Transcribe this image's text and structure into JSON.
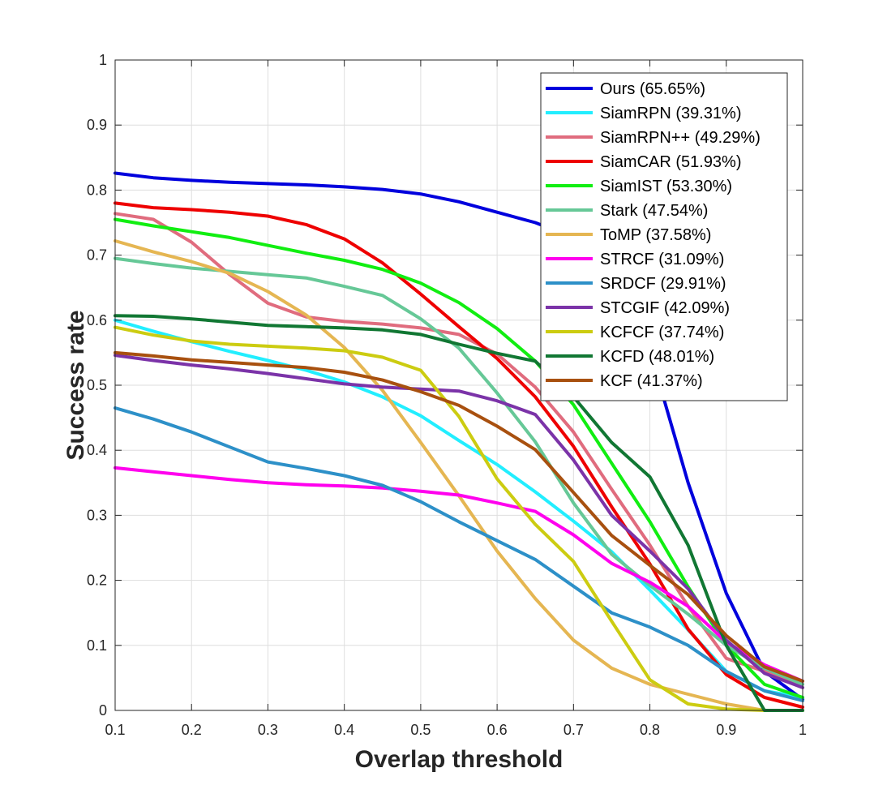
{
  "chart_data": {
    "type": "line",
    "title": "",
    "xlabel": "Overlap threshold",
    "ylabel": "Success rate",
    "xlim": [
      0.1,
      1
    ],
    "ylim": [
      0,
      1
    ],
    "xticks": [
      "0.1",
      "0.2",
      "0.3",
      "0.4",
      "0.5",
      "0.6",
      "0.7",
      "0.8",
      "0.9",
      "1"
    ],
    "yticks": [
      "0",
      "0.1",
      "0.2",
      "0.3",
      "0.4",
      "0.5",
      "0.6",
      "0.7",
      "0.8",
      "0.9",
      "1"
    ],
    "grid": true,
    "legend_position": "top-right",
    "x": [
      0.1,
      0.15,
      0.2,
      0.25,
      0.3,
      0.35,
      0.4,
      0.45,
      0.5,
      0.55,
      0.6,
      0.65,
      0.7,
      0.75,
      0.8,
      0.85,
      0.9,
      0.95,
      1.0
    ],
    "series": [
      {
        "name": "Ours (65.65%)",
        "color": "#0000dd",
        "values": [
          0.826,
          0.819,
          0.815,
          0.812,
          0.81,
          0.808,
          0.805,
          0.801,
          0.794,
          0.782,
          0.766,
          0.75,
          0.727,
          0.68,
          0.553,
          0.35,
          0.18,
          0.06,
          0.017
        ]
      },
      {
        "name": "SiamRPN (39.31%)",
        "color": "#22eeff",
        "values": [
          0.6,
          0.583,
          0.567,
          0.552,
          0.538,
          0.523,
          0.505,
          0.482,
          0.453,
          0.415,
          0.378,
          0.336,
          0.291,
          0.244,
          0.185,
          0.124,
          0.06,
          0.03,
          0.02
        ]
      },
      {
        "name": "SiamRPN++ (49.29%)",
        "color": "#e06c7e",
        "values": [
          0.764,
          0.755,
          0.72,
          0.67,
          0.626,
          0.605,
          0.598,
          0.594,
          0.588,
          0.578,
          0.548,
          0.497,
          0.428,
          0.34,
          0.254,
          0.16,
          0.08,
          0.06,
          0.04
        ]
      },
      {
        "name": "SiamCAR (51.93%)",
        "color": "#ee0000",
        "values": [
          0.78,
          0.773,
          0.77,
          0.766,
          0.76,
          0.747,
          0.725,
          0.688,
          0.64,
          0.59,
          0.541,
          0.482,
          0.406,
          0.313,
          0.225,
          0.125,
          0.055,
          0.02,
          0.005
        ]
      },
      {
        "name": "SiamIST (53.30%)",
        "color": "#11ee11",
        "values": [
          0.755,
          0.745,
          0.736,
          0.727,
          0.715,
          0.703,
          0.692,
          0.678,
          0.657,
          0.627,
          0.587,
          0.537,
          0.47,
          0.38,
          0.29,
          0.19,
          0.1,
          0.04,
          0.02
        ]
      },
      {
        "name": "Stark (47.54%)",
        "color": "#66c897",
        "values": [
          0.695,
          0.687,
          0.68,
          0.675,
          0.67,
          0.665,
          0.652,
          0.638,
          0.602,
          0.557,
          0.488,
          0.413,
          0.319,
          0.24,
          0.192,
          0.148,
          0.1,
          0.065,
          0.04
        ]
      },
      {
        "name": "ToMP (37.58%)",
        "color": "#e5b652",
        "values": [
          0.722,
          0.705,
          0.69,
          0.672,
          0.644,
          0.608,
          0.558,
          0.492,
          0.412,
          0.33,
          0.245,
          0.172,
          0.108,
          0.065,
          0.04,
          0.025,
          0.01,
          0.0,
          0.0
        ]
      },
      {
        "name": "STRCF (31.09%)",
        "color": "#ff00ee",
        "values": [
          0.373,
          0.367,
          0.361,
          0.355,
          0.35,
          0.347,
          0.345,
          0.342,
          0.337,
          0.331,
          0.319,
          0.306,
          0.27,
          0.226,
          0.197,
          0.16,
          0.105,
          0.07,
          0.045
        ]
      },
      {
        "name": "SRDCF (29.91%)",
        "color": "#2d90c8",
        "values": [
          0.465,
          0.448,
          0.428,
          0.405,
          0.382,
          0.372,
          0.361,
          0.346,
          0.321,
          0.29,
          0.261,
          0.232,
          0.191,
          0.15,
          0.128,
          0.1,
          0.06,
          0.03,
          0.015
        ]
      },
      {
        "name": "STCGIF (42.09%)",
        "color": "#7b33a8",
        "values": [
          0.546,
          0.538,
          0.531,
          0.525,
          0.518,
          0.51,
          0.502,
          0.497,
          0.494,
          0.491,
          0.476,
          0.455,
          0.385,
          0.3,
          0.245,
          0.187,
          0.108,
          0.057,
          0.035
        ]
      },
      {
        "name": "KCFCF (37.74%)",
        "color": "#cccc11",
        "values": [
          0.589,
          0.577,
          0.568,
          0.563,
          0.56,
          0.557,
          0.553,
          0.543,
          0.523,
          0.452,
          0.356,
          0.286,
          0.229,
          0.137,
          0.047,
          0.01,
          0.002,
          0.0,
          0.0
        ]
      },
      {
        "name": "KCFD (48.01%)",
        "color": "#117733",
        "values": [
          0.607,
          0.606,
          0.602,
          0.597,
          0.592,
          0.59,
          0.588,
          0.585,
          0.578,
          0.563,
          0.549,
          0.537,
          0.482,
          0.412,
          0.359,
          0.254,
          0.1,
          0.0,
          0.0
        ]
      },
      {
        "name": "KCF (41.37%)",
        "color": "#a8500f",
        "values": [
          0.55,
          0.545,
          0.539,
          0.535,
          0.531,
          0.527,
          0.52,
          0.508,
          0.49,
          0.469,
          0.437,
          0.401,
          0.335,
          0.269,
          0.223,
          0.178,
          0.115,
          0.067,
          0.045
        ]
      }
    ]
  }
}
